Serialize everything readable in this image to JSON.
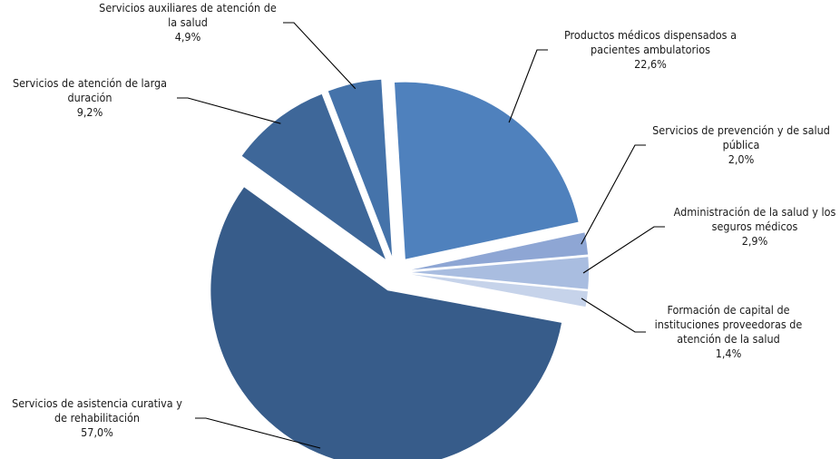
{
  "chart_data": {
    "type": "pie",
    "title": "",
    "legend": "none",
    "slices": [
      {
        "label": [
          "Productos médicos dispensados a",
          "pacientes ambulatorios"
        ],
        "value_label": "22,6%",
        "value": 22.6,
        "color": "#4f81bd"
      },
      {
        "label": [
          "Servicios de prevención y de salud",
          "pública"
        ],
        "value_label": "2,0%",
        "value": 2.0,
        "color": "#8ea6d4"
      },
      {
        "label": [
          "Administración de la salud y los",
          "seguros médicos"
        ],
        "value_label": "2,9%",
        "value": 2.9,
        "color": "#a9bde0"
      },
      {
        "label": [
          "Formación de capital de",
          "instituciones proveedoras de",
          "atención de la salud"
        ],
        "value_label": "1,4%",
        "value": 1.4,
        "color": "#c6d3ea"
      },
      {
        "label": [
          "Servicios de asistencia curativa y",
          "de rehabilitación"
        ],
        "value_label": "57,0%",
        "value": 57.0,
        "color": "#375c8a"
      },
      {
        "label": [
          "Servicios de atención de larga",
          "duración"
        ],
        "value_label": "9,2%",
        "value": 9.2,
        "color": "#3e6799"
      },
      {
        "label": [
          "Servicios auxiliares de atención de",
          "la salud"
        ],
        "value_label": "4,9%",
        "value": 4.9,
        "color": "#4573aa"
      }
    ]
  }
}
